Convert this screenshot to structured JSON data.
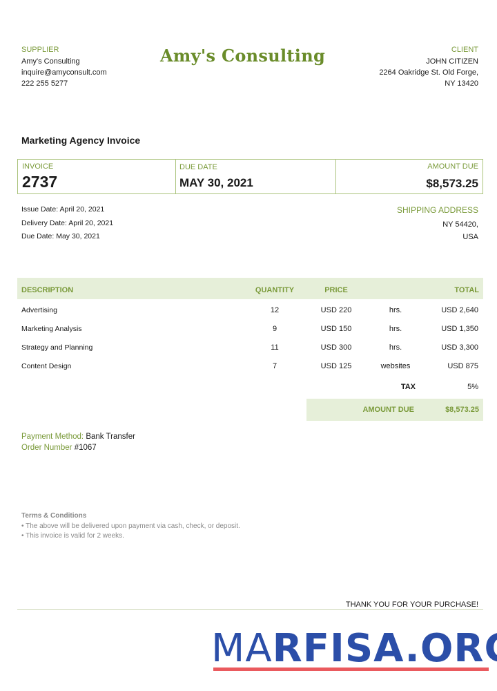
{
  "brand": {
    "title": "Amy's Consulting",
    "accent": "#7a9a3a"
  },
  "supplier": {
    "label": "SUPPLIER",
    "name": "Amy's Consulting",
    "email": "inquire@amyconsult.com",
    "phone": "222 255 5277"
  },
  "client": {
    "label": "CLIENT",
    "name": "JOHN CITIZEN",
    "address1": "2264 Oakridge St. Old Forge,",
    "address2": "NY 13420"
  },
  "doc_title": "Marketing Agency Invoice",
  "summary": {
    "invoice_label": "INVOICE",
    "invoice_number": "2737",
    "due_label": "DUE DATE",
    "due_date": "MAY 30, 2021",
    "amount_label": "AMOUNT DUE",
    "amount": "$8,573.25"
  },
  "dates": {
    "issue": "Issue Date:  April 20, 2021",
    "delivery": "Delivery Date: April 20, 2021",
    "due": "Due Date: May 30, 2021"
  },
  "shipping": {
    "label": "SHIPPING ADDRESS",
    "line1": "NY 54420,",
    "line2": "USA"
  },
  "table": {
    "headers": {
      "description": "DESCRIPTION",
      "quantity": "QUANTITY",
      "price": "PRICE",
      "total": "TOTAL"
    },
    "rows": [
      {
        "description": "Advertising",
        "quantity": "12",
        "price": "USD 220",
        "unit": "hrs.",
        "total": "USD 2,640"
      },
      {
        "description": "Marketing Analysis",
        "quantity": "9",
        "price": "USD 150",
        "unit": "hrs.",
        "total": "USD 1,350"
      },
      {
        "description": "Strategy and Planning",
        "quantity": "11",
        "price": "USD 300",
        "unit": "hrs.",
        "total": "USD 3,300"
      },
      {
        "description": "Content Design",
        "quantity": "7",
        "price": "USD 125",
        "unit": "websites",
        "total": "USD 875"
      }
    ],
    "tax_label": "TAX",
    "tax_value": "5%",
    "amount_due_label": "AMOUNT DUE",
    "amount_due_value": "$8,573.25"
  },
  "payment": {
    "method_label": "Payment  Method:",
    "method": "Bank Transfer",
    "order_label": "Order Number",
    "order": "#1067"
  },
  "terms": {
    "title": "Terms & Conditions",
    "items": [
      "• The above will be delivered upon payment via cash, check, or deposit.",
      "• This invoice is valid for 2 weeks."
    ]
  },
  "footer": {
    "thanks": "THANK YOU FOR YOUR PURCHASE!"
  },
  "watermark": {
    "text_thin": "MA",
    "text_bold": "RFISA.ORG",
    "color": "#2b4ea8",
    "underline_color": "#ea5a5e"
  }
}
